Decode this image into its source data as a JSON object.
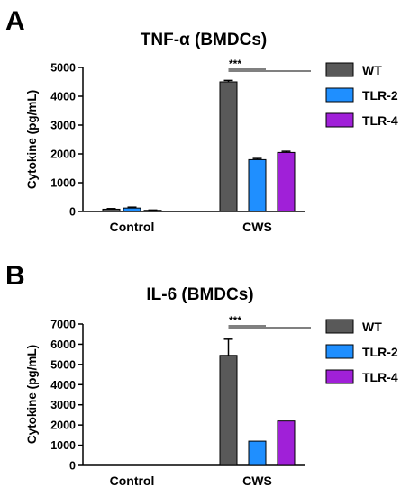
{
  "panels": [
    {
      "letter": "A"
    },
    {
      "letter": "B"
    }
  ],
  "legend": [
    {
      "label": "WT",
      "color": "#595959"
    },
    {
      "label": "TLR-2",
      "color": "#1f8fff"
    },
    {
      "label": "TLR-4",
      "color": "#a020d8"
    }
  ],
  "chart_data": [
    {
      "type": "bar",
      "title": "TNF-α (BMDCs)",
      "ylabel": "Cytokine (pg/mL)",
      "xlabel": "",
      "categories": [
        "Control",
        "CWS"
      ],
      "ylim": [
        0,
        5000
      ],
      "yticks": [
        0,
        1000,
        2000,
        3000,
        4000,
        5000
      ],
      "grid": false,
      "legend_position": "right",
      "series": [
        {
          "name": "WT",
          "values": [
            80,
            4500
          ],
          "errors": [
            20,
            50
          ]
        },
        {
          "name": "TLR-2",
          "values": [
            120,
            1800
          ],
          "errors": [
            30,
            40
          ]
        },
        {
          "name": "TLR-4",
          "values": [
            40,
            2050
          ],
          "errors": [
            10,
            40
          ]
        }
      ],
      "significance": {
        "label": "***",
        "category": "CWS",
        "comparisons": [
          [
            "WT",
            "TLR-2"
          ],
          [
            "WT",
            "TLR-4"
          ]
        ]
      }
    },
    {
      "type": "bar",
      "title": "IL-6 (BMDCs)",
      "ylabel": "Cytokine (pg/mL)",
      "xlabel": "",
      "categories": [
        "Control",
        "CWS"
      ],
      "ylim": [
        0,
        7000
      ],
      "yticks": [
        0,
        1000,
        2000,
        3000,
        4000,
        5000,
        6000,
        7000
      ],
      "grid": false,
      "legend_position": "right",
      "series": [
        {
          "name": "WT",
          "values": [
            0,
            5450
          ],
          "errors": [
            0,
            800
          ]
        },
        {
          "name": "TLR-2",
          "values": [
            0,
            1200
          ],
          "errors": [
            0,
            0
          ]
        },
        {
          "name": "TLR-4",
          "values": [
            0,
            2200
          ],
          "errors": [
            0,
            0
          ]
        }
      ],
      "significance": {
        "label": "***",
        "category": "CWS",
        "comparisons": [
          [
            "WT",
            "TLR-2"
          ],
          [
            "WT",
            "TLR-4"
          ]
        ]
      }
    }
  ]
}
